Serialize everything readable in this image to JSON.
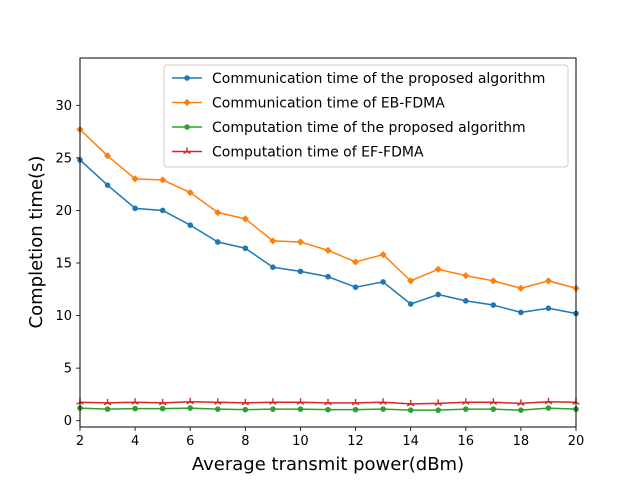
{
  "chart_data": {
    "type": "line",
    "xlabel": "Average transmit power(dBm)",
    "ylabel": "Completion time(s)",
    "xlim": [
      2,
      20
    ],
    "ylim": [
      -0.6,
      34.5
    ],
    "xticks": [
      2,
      4,
      6,
      8,
      10,
      12,
      14,
      16,
      18,
      20
    ],
    "yticks": [
      0,
      5,
      10,
      15,
      20,
      25,
      30
    ],
    "grid": false,
    "legend_position": "top-right",
    "x": [
      2,
      3,
      4,
      5,
      6,
      7,
      8,
      9,
      10,
      11,
      12,
      13,
      14,
      15,
      16,
      17,
      18,
      19,
      20
    ],
    "series": [
      {
        "name": "Communication time of the proposed algorithm",
        "color": "#1f77b4",
        "marker": "circle",
        "values": [
          24.8,
          22.4,
          20.2,
          20.0,
          18.6,
          17.0,
          16.4,
          14.6,
          14.2,
          13.7,
          12.7,
          13.2,
          11.1,
          12.0,
          11.4,
          11.0,
          10.3,
          10.7,
          10.2
        ]
      },
      {
        "name": "Communication time of EB-FDMA",
        "color": "#ff7f0e",
        "marker": "diamond",
        "values": [
          27.7,
          25.2,
          23.0,
          22.9,
          21.7,
          19.8,
          19.2,
          17.1,
          17.0,
          16.2,
          15.1,
          15.8,
          13.3,
          14.4,
          13.8,
          13.3,
          12.6,
          13.3,
          12.6
        ]
      },
      {
        "name": "Computation time of the proposed algorithm",
        "color": "#2ca02c",
        "marker": "circle",
        "values": [
          1.2,
          1.1,
          1.15,
          1.15,
          1.2,
          1.1,
          1.05,
          1.1,
          1.1,
          1.05,
          1.05,
          1.1,
          1.0,
          1.0,
          1.1,
          1.1,
          1.0,
          1.2,
          1.1
        ]
      },
      {
        "name": "Computation time of EF-FDMA",
        "color": "#d62728",
        "marker": "tri",
        "values": [
          1.75,
          1.7,
          1.75,
          1.7,
          1.8,
          1.75,
          1.7,
          1.75,
          1.75,
          1.7,
          1.7,
          1.75,
          1.6,
          1.65,
          1.75,
          1.75,
          1.65,
          1.8,
          1.75
        ]
      }
    ]
  }
}
